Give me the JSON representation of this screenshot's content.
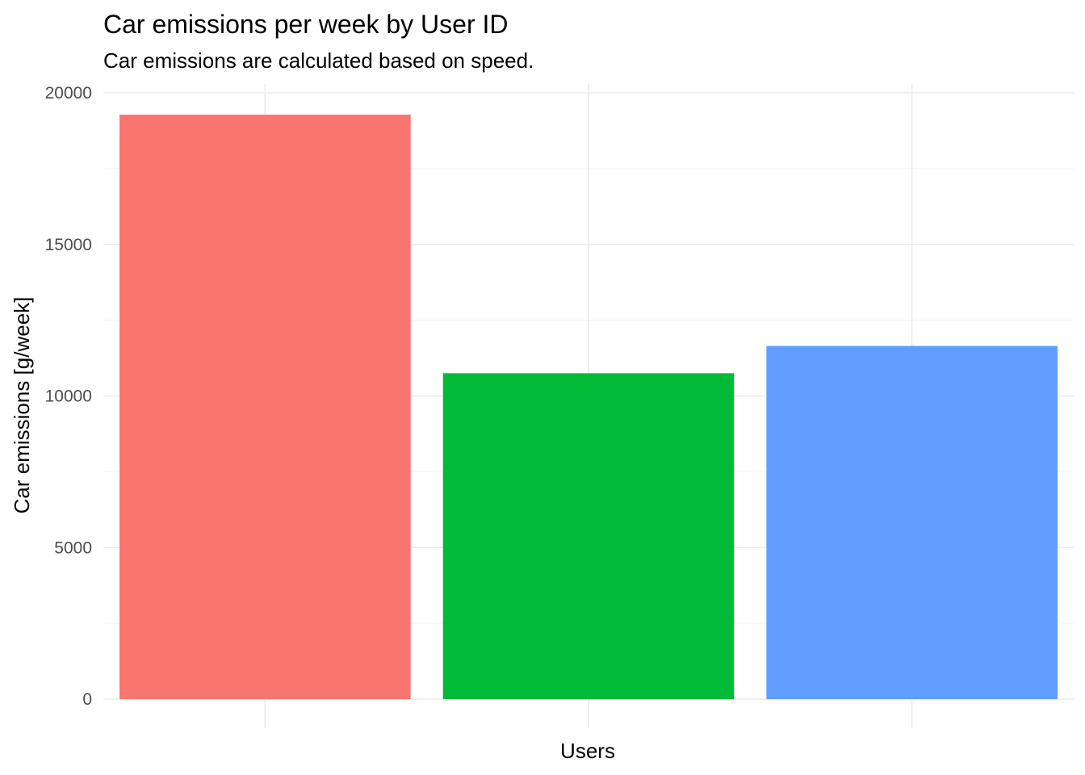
{
  "chart_data": {
    "type": "bar",
    "title": "Car emissions per week by User ID",
    "subtitle": "Car emissions are calculated based on speed.",
    "xlabel": "Users",
    "ylabel": "Car emissions [g/week]",
    "categories": [
      "",
      "",
      ""
    ],
    "values": [
      19280,
      10750,
      11650
    ],
    "colors": [
      "#F8766D",
      "#00BA38",
      "#619CFF"
    ],
    "ylim": [
      0,
      20000
    ],
    "yticks": [
      0,
      5000,
      10000,
      15000,
      20000
    ],
    "ytick_labels": [
      "0",
      "5000",
      "10000",
      "15000",
      "20000"
    ],
    "grid": true,
    "legend": "none"
  }
}
